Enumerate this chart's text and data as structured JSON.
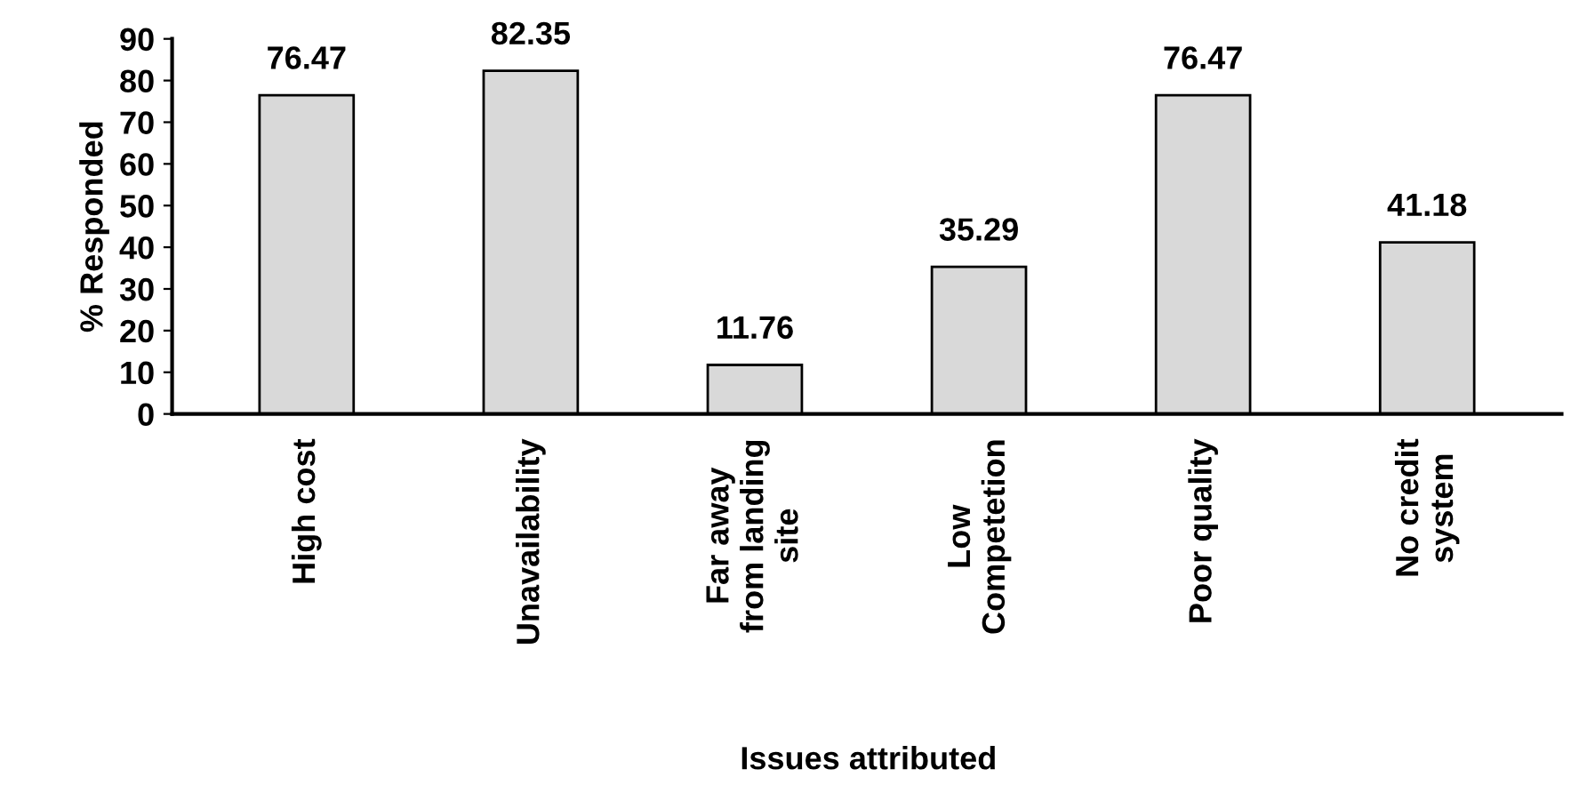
{
  "chart_data": {
    "type": "bar",
    "xlabel": "Issues attributed",
    "ylabel": "% Responded",
    "categories": [
      "High cost",
      "Unavailability",
      "Far away\nfrom landing\nsite",
      "Low\nCompetetion",
      "Poor quality",
      "No credit\nsystem"
    ],
    "values": [
      76.47,
      82.35,
      11.76,
      35.29,
      76.47,
      41.18
    ],
    "color": "#d9d9d9",
    "ylim": [
      0,
      90
    ],
    "yticks": [
      0,
      10,
      20,
      30,
      40,
      50,
      60,
      70,
      80,
      90
    ],
    "grid": false,
    "data_labels": true,
    "legend": false
  }
}
